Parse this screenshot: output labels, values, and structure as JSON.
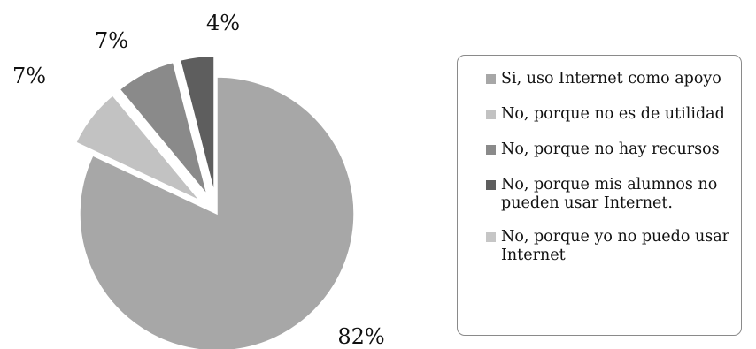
{
  "chart_data": {
    "type": "pie",
    "categories": [
      "Si, uso Internet como apoyo",
      "No, porque no es de utilidad",
      "No, porque no hay recursos",
      "No, porque mis alumnos no pueden usar Internet.",
      "No, porque yo no puedo usar Internet"
    ],
    "values": [
      82,
      7,
      7,
      4,
      0
    ],
    "data_labels": [
      "82%",
      "7%",
      "7%",
      "4%",
      ""
    ],
    "exploded": [
      false,
      true,
      true,
      true,
      false
    ],
    "colors": [
      "#a7a7a7",
      "#c2c2c2",
      "#8a8a8a",
      "#5e5e5e",
      "#c6c6c6"
    ],
    "legend_position": "right",
    "title": "",
    "xlabel": "",
    "ylabel": ""
  }
}
